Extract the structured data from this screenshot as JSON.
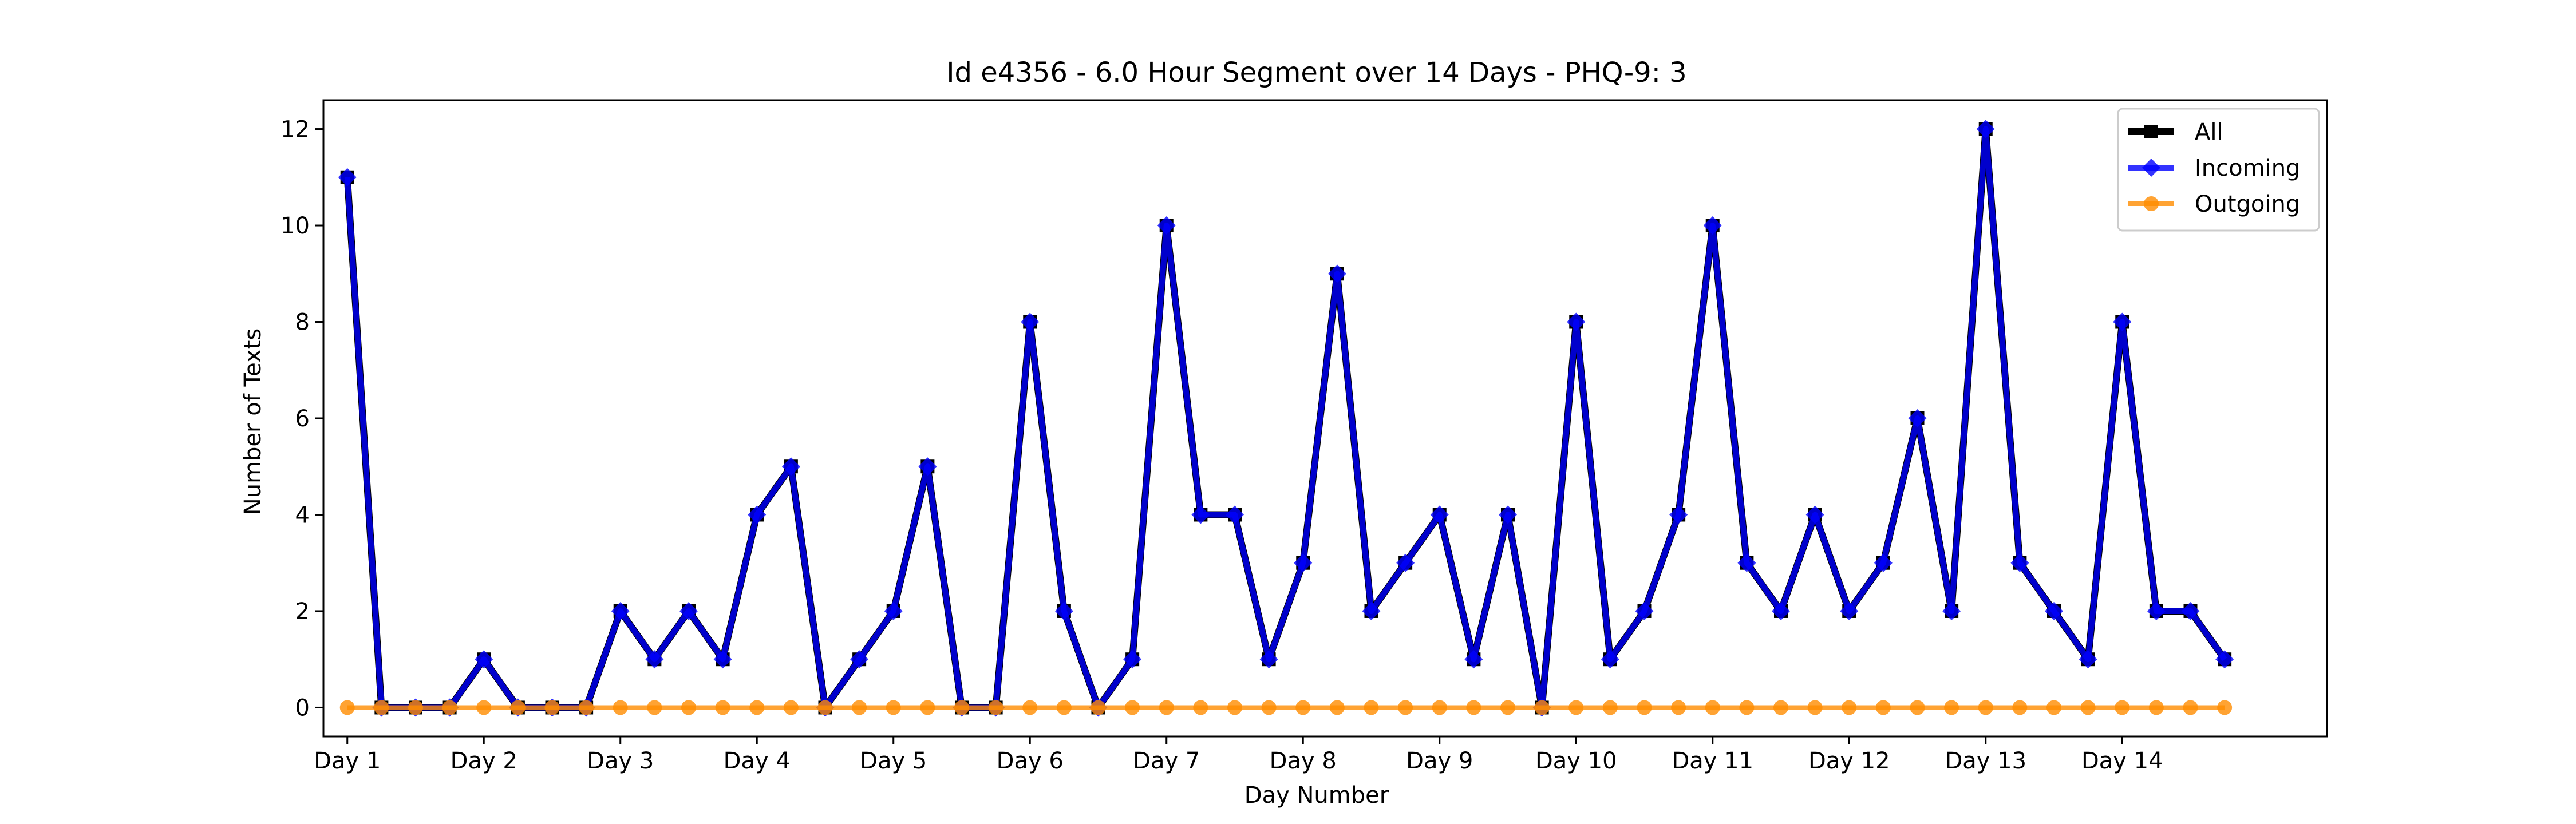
{
  "chart_data": {
    "type": "line",
    "title": "Id e4356 - 6.0 Hour Segment over 14 Days - PHQ-9: 3",
    "xlabel": "Day Number",
    "ylabel": "Number of Texts",
    "xlim": [
      -0.7,
      58.0
    ],
    "ylim": [
      -0.6,
      12.6
    ],
    "x_ticks": [
      {
        "x": 0,
        "label": "Day 1"
      },
      {
        "x": 4,
        "label": "Day 2"
      },
      {
        "x": 8,
        "label": "Day 3"
      },
      {
        "x": 12,
        "label": "Day 4"
      },
      {
        "x": 16,
        "label": "Day 5"
      },
      {
        "x": 20,
        "label": "Day 6"
      },
      {
        "x": 24,
        "label": "Day 7"
      },
      {
        "x": 28,
        "label": "Day 8"
      },
      {
        "x": 32,
        "label": "Day 9"
      },
      {
        "x": 36,
        "label": "Day 10"
      },
      {
        "x": 40,
        "label": "Day 11"
      },
      {
        "x": 44,
        "label": "Day 12"
      },
      {
        "x": 48,
        "label": "Day 13"
      },
      {
        "x": 52,
        "label": "Day 14"
      }
    ],
    "y_ticks": [
      0,
      2,
      4,
      6,
      8,
      10,
      12
    ],
    "grid": false,
    "legend_position": "top-right",
    "series": [
      {
        "name": "All",
        "color": "#000000",
        "marker": "square",
        "values": [
          11,
          0,
          0,
          0,
          1,
          0,
          0,
          0,
          2,
          1,
          2,
          1,
          4,
          5,
          0,
          1,
          2,
          5,
          0,
          0,
          8,
          2,
          0,
          1,
          10,
          4,
          4,
          1,
          3,
          9,
          2,
          3,
          4,
          1,
          4,
          0,
          8,
          1,
          2,
          4,
          10,
          3,
          2,
          4,
          2,
          3,
          6,
          2,
          12,
          3,
          2,
          1,
          8,
          2,
          2,
          1
        ]
      },
      {
        "name": "Incoming",
        "color": "#0000ff",
        "marker": "diamond",
        "values": [
          11,
          0,
          0,
          0,
          1,
          0,
          0,
          0,
          2,
          1,
          2,
          1,
          4,
          5,
          0,
          1,
          2,
          5,
          0,
          0,
          8,
          2,
          0,
          1,
          10,
          4,
          4,
          1,
          3,
          9,
          2,
          3,
          4,
          1,
          4,
          0,
          8,
          1,
          2,
          4,
          10,
          3,
          2,
          4,
          2,
          3,
          6,
          2,
          12,
          3,
          2,
          1,
          8,
          2,
          2,
          1
        ]
      },
      {
        "name": "Outgoing",
        "color": "#ff8c00",
        "marker": "circle",
        "values": [
          0,
          0,
          0,
          0,
          0,
          0,
          0,
          0,
          0,
          0,
          0,
          0,
          0,
          0,
          0,
          0,
          0,
          0,
          0,
          0,
          0,
          0,
          0,
          0,
          0,
          0,
          0,
          0,
          0,
          0,
          0,
          0,
          0,
          0,
          0,
          0,
          0,
          0,
          0,
          0,
          0,
          0,
          0,
          0,
          0,
          0,
          0,
          0,
          0,
          0,
          0,
          0,
          0,
          0,
          0,
          0
        ]
      }
    ]
  }
}
